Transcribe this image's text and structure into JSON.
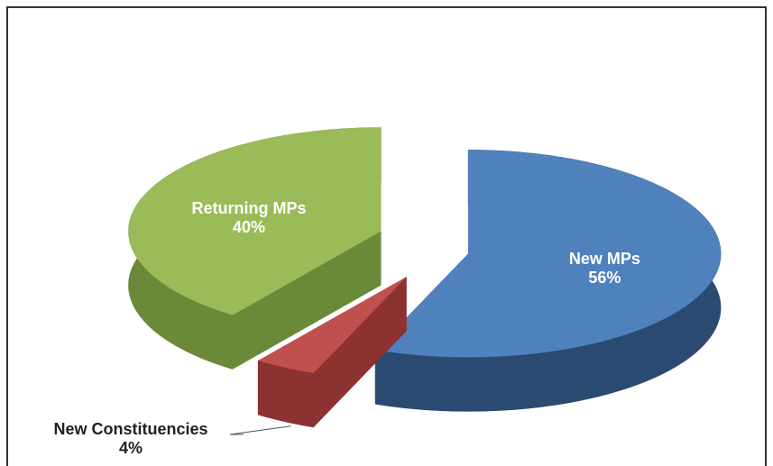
{
  "chart_data": {
    "type": "pie",
    "categories": [
      "New MPs",
      "New Constituencies",
      "Returning MPs"
    ],
    "values": [
      56,
      4,
      40
    ],
    "value_labels": [
      "56%",
      "4%",
      "40%"
    ],
    "colors": [
      "#4f81bd",
      "#c0504d",
      "#9bbb59"
    ],
    "side_colors": [
      "#2b4a72",
      "#8c3230",
      "#6a8a3a"
    ]
  }
}
